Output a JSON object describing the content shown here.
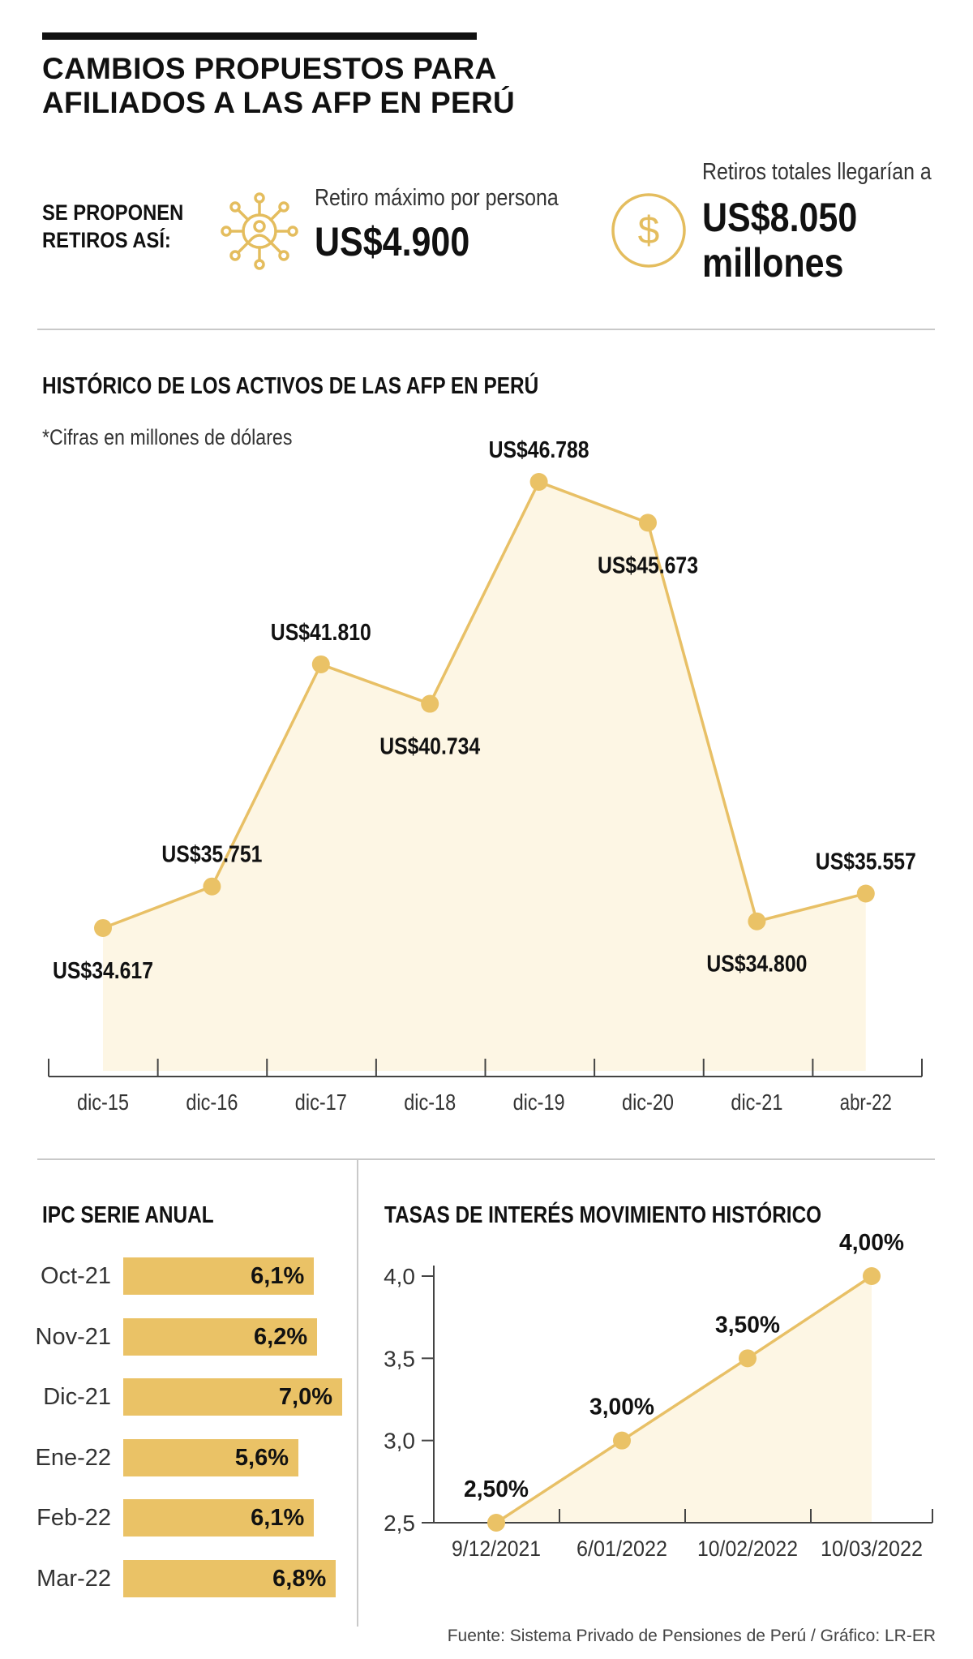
{
  "header": {
    "title_line1": "CAMBIOS PROPUESTOS PARA",
    "title_line2": "AFILIADOS A LAS AFP EN PERÚ"
  },
  "proposal": {
    "label_line1": "SE PROPONEN",
    "label_line2": "RETIROS ASÍ:",
    "per_person_label": "Retiro máximo por persona",
    "per_person_value": "US$4.900",
    "total_label": "Retiros totales llegarían a",
    "total_value_line1": "US$8.050",
    "total_value_line2": "millones",
    "per_person_icon": "network-person-icon",
    "total_icon": "dollar-coin-icon"
  },
  "colors": {
    "accent": "#eac266",
    "line": "#e8c066",
    "area_fill": "#fdf6e4",
    "text": "#1a1a1a"
  },
  "chart_data": [
    {
      "type": "area",
      "title": "HISTÓRICO DE LOS ACTIVOS DE LAS AFP EN PERÚ",
      "note": "*Cifras en millones de dólares",
      "categories": [
        "dic-15",
        "dic-16",
        "dic-17",
        "dic-18",
        "dic-19",
        "dic-20",
        "dic-21",
        "abr-22"
      ],
      "values": [
        34617,
        35751,
        41810,
        40734,
        46788,
        45673,
        34800,
        35557
      ],
      "labels": [
        "US$34.617",
        "US$35.751",
        "US$41.810",
        "US$40.734",
        "US$46.788",
        "US$45.673",
        "US$34.800",
        "US$35.557"
      ],
      "ylim": [
        30500,
        46788
      ],
      "grid": false
    },
    {
      "type": "bar",
      "title": "IPC SERIE ANUAL",
      "categories": [
        "Oct-21",
        "Nov-21",
        "Dic-21",
        "Ene-22",
        "Feb-22",
        "Mar-22"
      ],
      "values": [
        6.1,
        6.2,
        7.0,
        5.6,
        6.1,
        6.8
      ],
      "labels": [
        "6,1%",
        "6,2%",
        "7,0%",
        "5,6%",
        "6,1%",
        "6,8%"
      ]
    },
    {
      "type": "area",
      "title": "TASAS DE INTERÉS MOVIMIENTO HISTÓRICO",
      "x": [
        "9/12/2021",
        "6/01/2022",
        "10/02/2022",
        "10/03/2022"
      ],
      "values": [
        2.5,
        3.0,
        3.5,
        4.0
      ],
      "labels": [
        "2,50%",
        "3,00%",
        "3,50%",
        "4,00%"
      ],
      "yticks": [
        "4,0",
        "3,5",
        "3,0",
        "2,5"
      ],
      "ylim": [
        2.5,
        4.0
      ],
      "grid": false
    }
  ],
  "footer": {
    "source": "Fuente: Sistema Privado de Pensiones de Perú / Gráfico: LR-ER"
  }
}
